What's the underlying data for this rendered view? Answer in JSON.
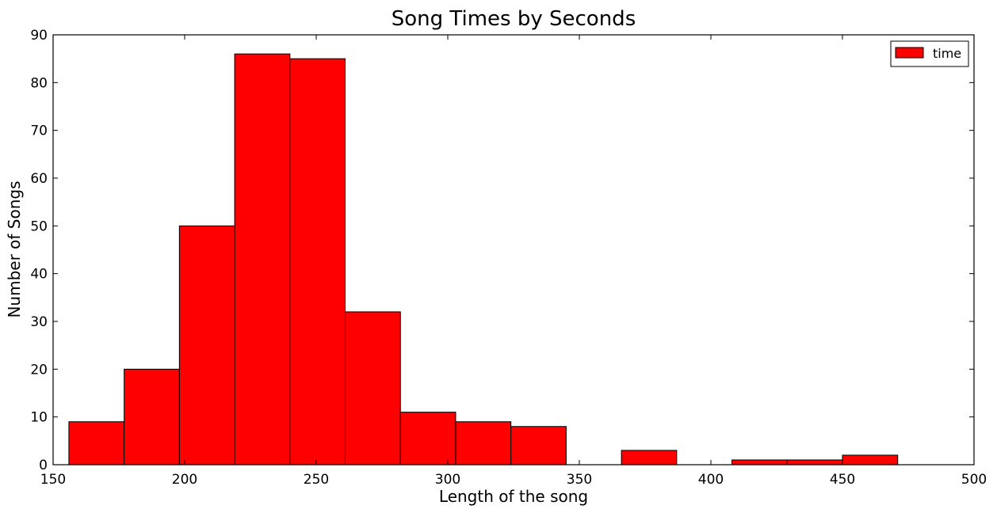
{
  "chart_data": {
    "type": "bar",
    "title": "Song Times by Seconds",
    "xlabel": "Length of the song",
    "ylabel": "Number of Songs",
    "xlim": [
      150,
      500
    ],
    "ylim": [
      0,
      90
    ],
    "xticks": [
      150,
      200,
      250,
      300,
      350,
      400,
      450,
      500
    ],
    "yticks": [
      0,
      10,
      20,
      30,
      40,
      50,
      60,
      70,
      80,
      90
    ],
    "grid": false,
    "legend_position": "top-right",
    "series": [
      {
        "name": "time",
        "color": "#ff0000",
        "bin_edges": [
          156,
          177,
          198,
          219,
          240,
          261,
          282,
          303,
          324,
          345,
          366,
          387,
          408,
          429,
          450,
          471
        ],
        "values": [
          9,
          20,
          50,
          86,
          85,
          32,
          11,
          9,
          8,
          0,
          3,
          0,
          1,
          1,
          2
        ]
      }
    ]
  }
}
